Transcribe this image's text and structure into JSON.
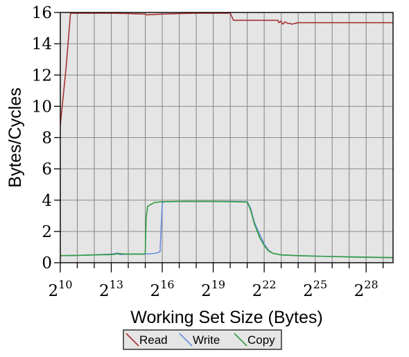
{
  "chart_data": {
    "type": "line",
    "title": "",
    "xlabel": "Working Set Size (Bytes)",
    "ylabel": "Bytes/Cycles",
    "x_scale": "log2",
    "xlim": [
      1024,
      805306368
    ],
    "ylim": [
      0,
      16
    ],
    "x_ticks": [
      {
        "base": "2",
        "exp": "10",
        "value": 1024
      },
      {
        "base": "2",
        "exp": "13",
        "value": 8192
      },
      {
        "base": "2",
        "exp": "16",
        "value": 65536
      },
      {
        "base": "2",
        "exp": "19",
        "value": 524288
      },
      {
        "base": "2",
        "exp": "22",
        "value": 4194304
      },
      {
        "base": "2",
        "exp": "25",
        "value": 33554432
      },
      {
        "base": "2",
        "exp": "28",
        "value": 268435456
      }
    ],
    "y_ticks": [
      "0",
      "2",
      "4",
      "6",
      "8",
      "10",
      "12",
      "14",
      "16"
    ],
    "grid": true,
    "legend_position": "bottom-center",
    "series": [
      {
        "name": "Read",
        "color": "#a83232",
        "points": [
          [
            1024,
            8.8
          ],
          [
            1300,
            12.5
          ],
          [
            1550,
            15.95
          ],
          [
            2048,
            15.95
          ],
          [
            4096,
            15.95
          ],
          [
            8192,
            15.95
          ],
          [
            16384,
            15.93
          ],
          [
            32768,
            15.9
          ],
          [
            34000,
            15.85
          ],
          [
            65536,
            15.9
          ],
          [
            131072,
            15.93
          ],
          [
            262144,
            15.95
          ],
          [
            524288,
            15.95
          ],
          [
            1048576,
            15.95
          ],
          [
            1200000,
            15.5
          ],
          [
            2097152,
            15.5
          ],
          [
            4194304,
            15.5
          ],
          [
            7340032,
            15.5
          ],
          [
            7600000,
            15.35
          ],
          [
            8300000,
            15.45
          ],
          [
            9000000,
            15.25
          ],
          [
            9800000,
            15.4
          ],
          [
            11000000,
            15.3
          ],
          [
            12000000,
            15.3
          ],
          [
            13000000,
            15.25
          ],
          [
            16777216,
            15.35
          ],
          [
            33554432,
            15.35
          ],
          [
            67108864,
            15.35
          ],
          [
            134217728,
            15.35
          ],
          [
            268435456,
            15.35
          ],
          [
            805306368,
            15.35
          ]
        ]
      },
      {
        "name": "Write",
        "color": "#6b8ce0",
        "points": [
          [
            1024,
            0.45
          ],
          [
            2048,
            0.47
          ],
          [
            4096,
            0.5
          ],
          [
            8192,
            0.55
          ],
          [
            11000,
            0.62
          ],
          [
            11500,
            0.52
          ],
          [
            16384,
            0.55
          ],
          [
            32768,
            0.55
          ],
          [
            49152,
            0.6
          ],
          [
            60000,
            0.7
          ],
          [
            65536,
            3.8
          ],
          [
            70000,
            3.9
          ],
          [
            131072,
            3.92
          ],
          [
            262144,
            3.92
          ],
          [
            524288,
            3.92
          ],
          [
            1048576,
            3.92
          ],
          [
            2097152,
            3.9
          ],
          [
            2400000,
            3.5
          ],
          [
            2800000,
            2.6
          ],
          [
            3500000,
            1.8
          ],
          [
            4194304,
            1.2
          ],
          [
            5000000,
            0.8
          ],
          [
            6000000,
            0.6
          ],
          [
            8388608,
            0.5
          ],
          [
            16777216,
            0.45
          ],
          [
            33554432,
            0.42
          ],
          [
            67108864,
            0.4
          ],
          [
            134217728,
            0.38
          ],
          [
            268435456,
            0.35
          ],
          [
            805306368,
            0.32
          ]
        ]
      },
      {
        "name": "Copy",
        "color": "#2e9c3e",
        "points": [
          [
            1024,
            0.45
          ],
          [
            2048,
            0.47
          ],
          [
            4096,
            0.5
          ],
          [
            8192,
            0.52
          ],
          [
            11000,
            0.58
          ],
          [
            16384,
            0.55
          ],
          [
            30000,
            0.55
          ],
          [
            32768,
            0.6
          ],
          [
            34000,
            2.9
          ],
          [
            36000,
            3.6
          ],
          [
            40000,
            3.7
          ],
          [
            48000,
            3.85
          ],
          [
            65536,
            3.9
          ],
          [
            131072,
            3.92
          ],
          [
            262144,
            3.92
          ],
          [
            524288,
            3.92
          ],
          [
            1048576,
            3.9
          ],
          [
            2097152,
            3.88
          ],
          [
            2400000,
            3.4
          ],
          [
            2800000,
            2.5
          ],
          [
            3500000,
            1.6
          ],
          [
            4194304,
            1.1
          ],
          [
            5000000,
            0.75
          ],
          [
            6000000,
            0.6
          ],
          [
            8388608,
            0.5
          ],
          [
            16777216,
            0.45
          ],
          [
            33554432,
            0.42
          ],
          [
            67108864,
            0.4
          ],
          [
            134217728,
            0.37
          ],
          [
            268435456,
            0.35
          ],
          [
            805306368,
            0.33
          ]
        ]
      }
    ]
  }
}
